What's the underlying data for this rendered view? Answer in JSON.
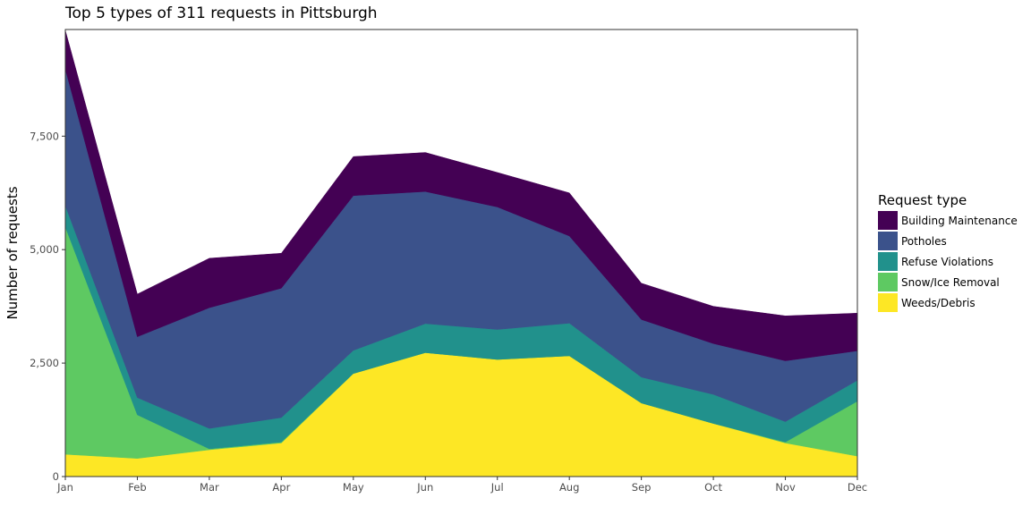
{
  "chart_data": {
    "type": "area",
    "stacked": true,
    "title": "Top 5 types of 311 requests in Pittsburgh",
    "xlabel": "",
    "ylabel": "Number of requests",
    "categories": [
      "Jan",
      "Feb",
      "Mar",
      "Apr",
      "May",
      "Jun",
      "Jul",
      "Aug",
      "Sep",
      "Oct",
      "Nov",
      "Dec"
    ],
    "y_ticks": [
      0,
      2500,
      5000,
      7500
    ],
    "y_tick_labels": [
      "0",
      "2,500",
      "5,000",
      "7,500"
    ],
    "ylim": [
      0,
      9850
    ],
    "grid": false,
    "legend": {
      "title": "Request type",
      "position": "right",
      "entries": [
        "Building Maintenance",
        "Potholes",
        "Refuse Violations",
        "Snow/Ice Removal",
        "Weeds/Debris"
      ]
    },
    "stack_order_bottom_to_top": [
      "Weeds/Debris",
      "Snow/Ice Removal",
      "Refuse Violations",
      "Potholes",
      "Building Maintenance"
    ],
    "series": [
      {
        "name": "Weeds/Debris",
        "color": "#FDE725",
        "values": [
          490,
          400,
          590,
          740,
          2270,
          2730,
          2580,
          2660,
          1620,
          1170,
          740,
          450
        ]
      },
      {
        "name": "Snow/Ice Removal",
        "color": "#5EC962",
        "values": [
          5010,
          960,
          20,
          20,
          0,
          0,
          0,
          0,
          0,
          0,
          20,
          1210
        ]
      },
      {
        "name": "Refuse Violations",
        "color": "#21918C",
        "values": [
          470,
          380,
          450,
          540,
          510,
          640,
          660,
          720,
          570,
          640,
          450,
          460
        ]
      },
      {
        "name": "Potholes",
        "color": "#3B528B",
        "values": [
          3010,
          1340,
          2660,
          2850,
          3410,
          2910,
          2700,
          1920,
          1270,
          1120,
          1340,
          650
        ]
      },
      {
        "name": "Building Maintenance",
        "color": "#440154",
        "values": [
          850,
          940,
          1090,
          770,
          860,
          860,
          760,
          950,
          800,
          820,
          990,
          830
        ]
      }
    ]
  }
}
